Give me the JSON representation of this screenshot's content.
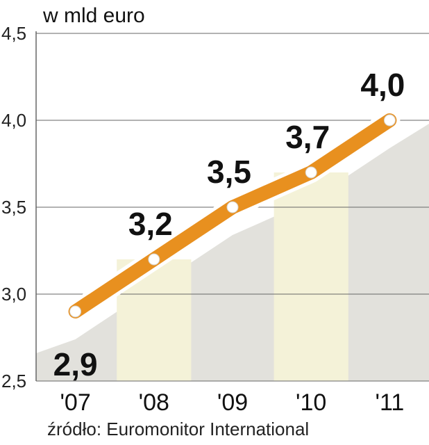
{
  "chart_data": {
    "type": "line",
    "title": "",
    "unit_label": "w mld euro",
    "categories": [
      "'07",
      "'08",
      "'09",
      "'10",
      "'11"
    ],
    "series": [
      {
        "values": [
          2.9,
          3.2,
          3.5,
          3.7,
          4.0
        ]
      }
    ],
    "data_labels": [
      "2,9",
      "3,2",
      "3,5",
      "3,7",
      "4,0"
    ],
    "y_ticks": [
      2.5,
      3.0,
      3.5,
      4.0,
      4.5
    ],
    "y_tick_labels": [
      "2,5",
      "3,0",
      "3,5",
      "4,0",
      "4,5"
    ],
    "ylim": [
      2.5,
      4.5
    ],
    "grid": true,
    "legend": "none",
    "source": "źródło: Euromonitor International",
    "colors": {
      "line": "#e8901f",
      "marker": "#ffffff",
      "area": "#e2e1dc",
      "band": "#f4f2d8",
      "grid": "#666666"
    }
  }
}
